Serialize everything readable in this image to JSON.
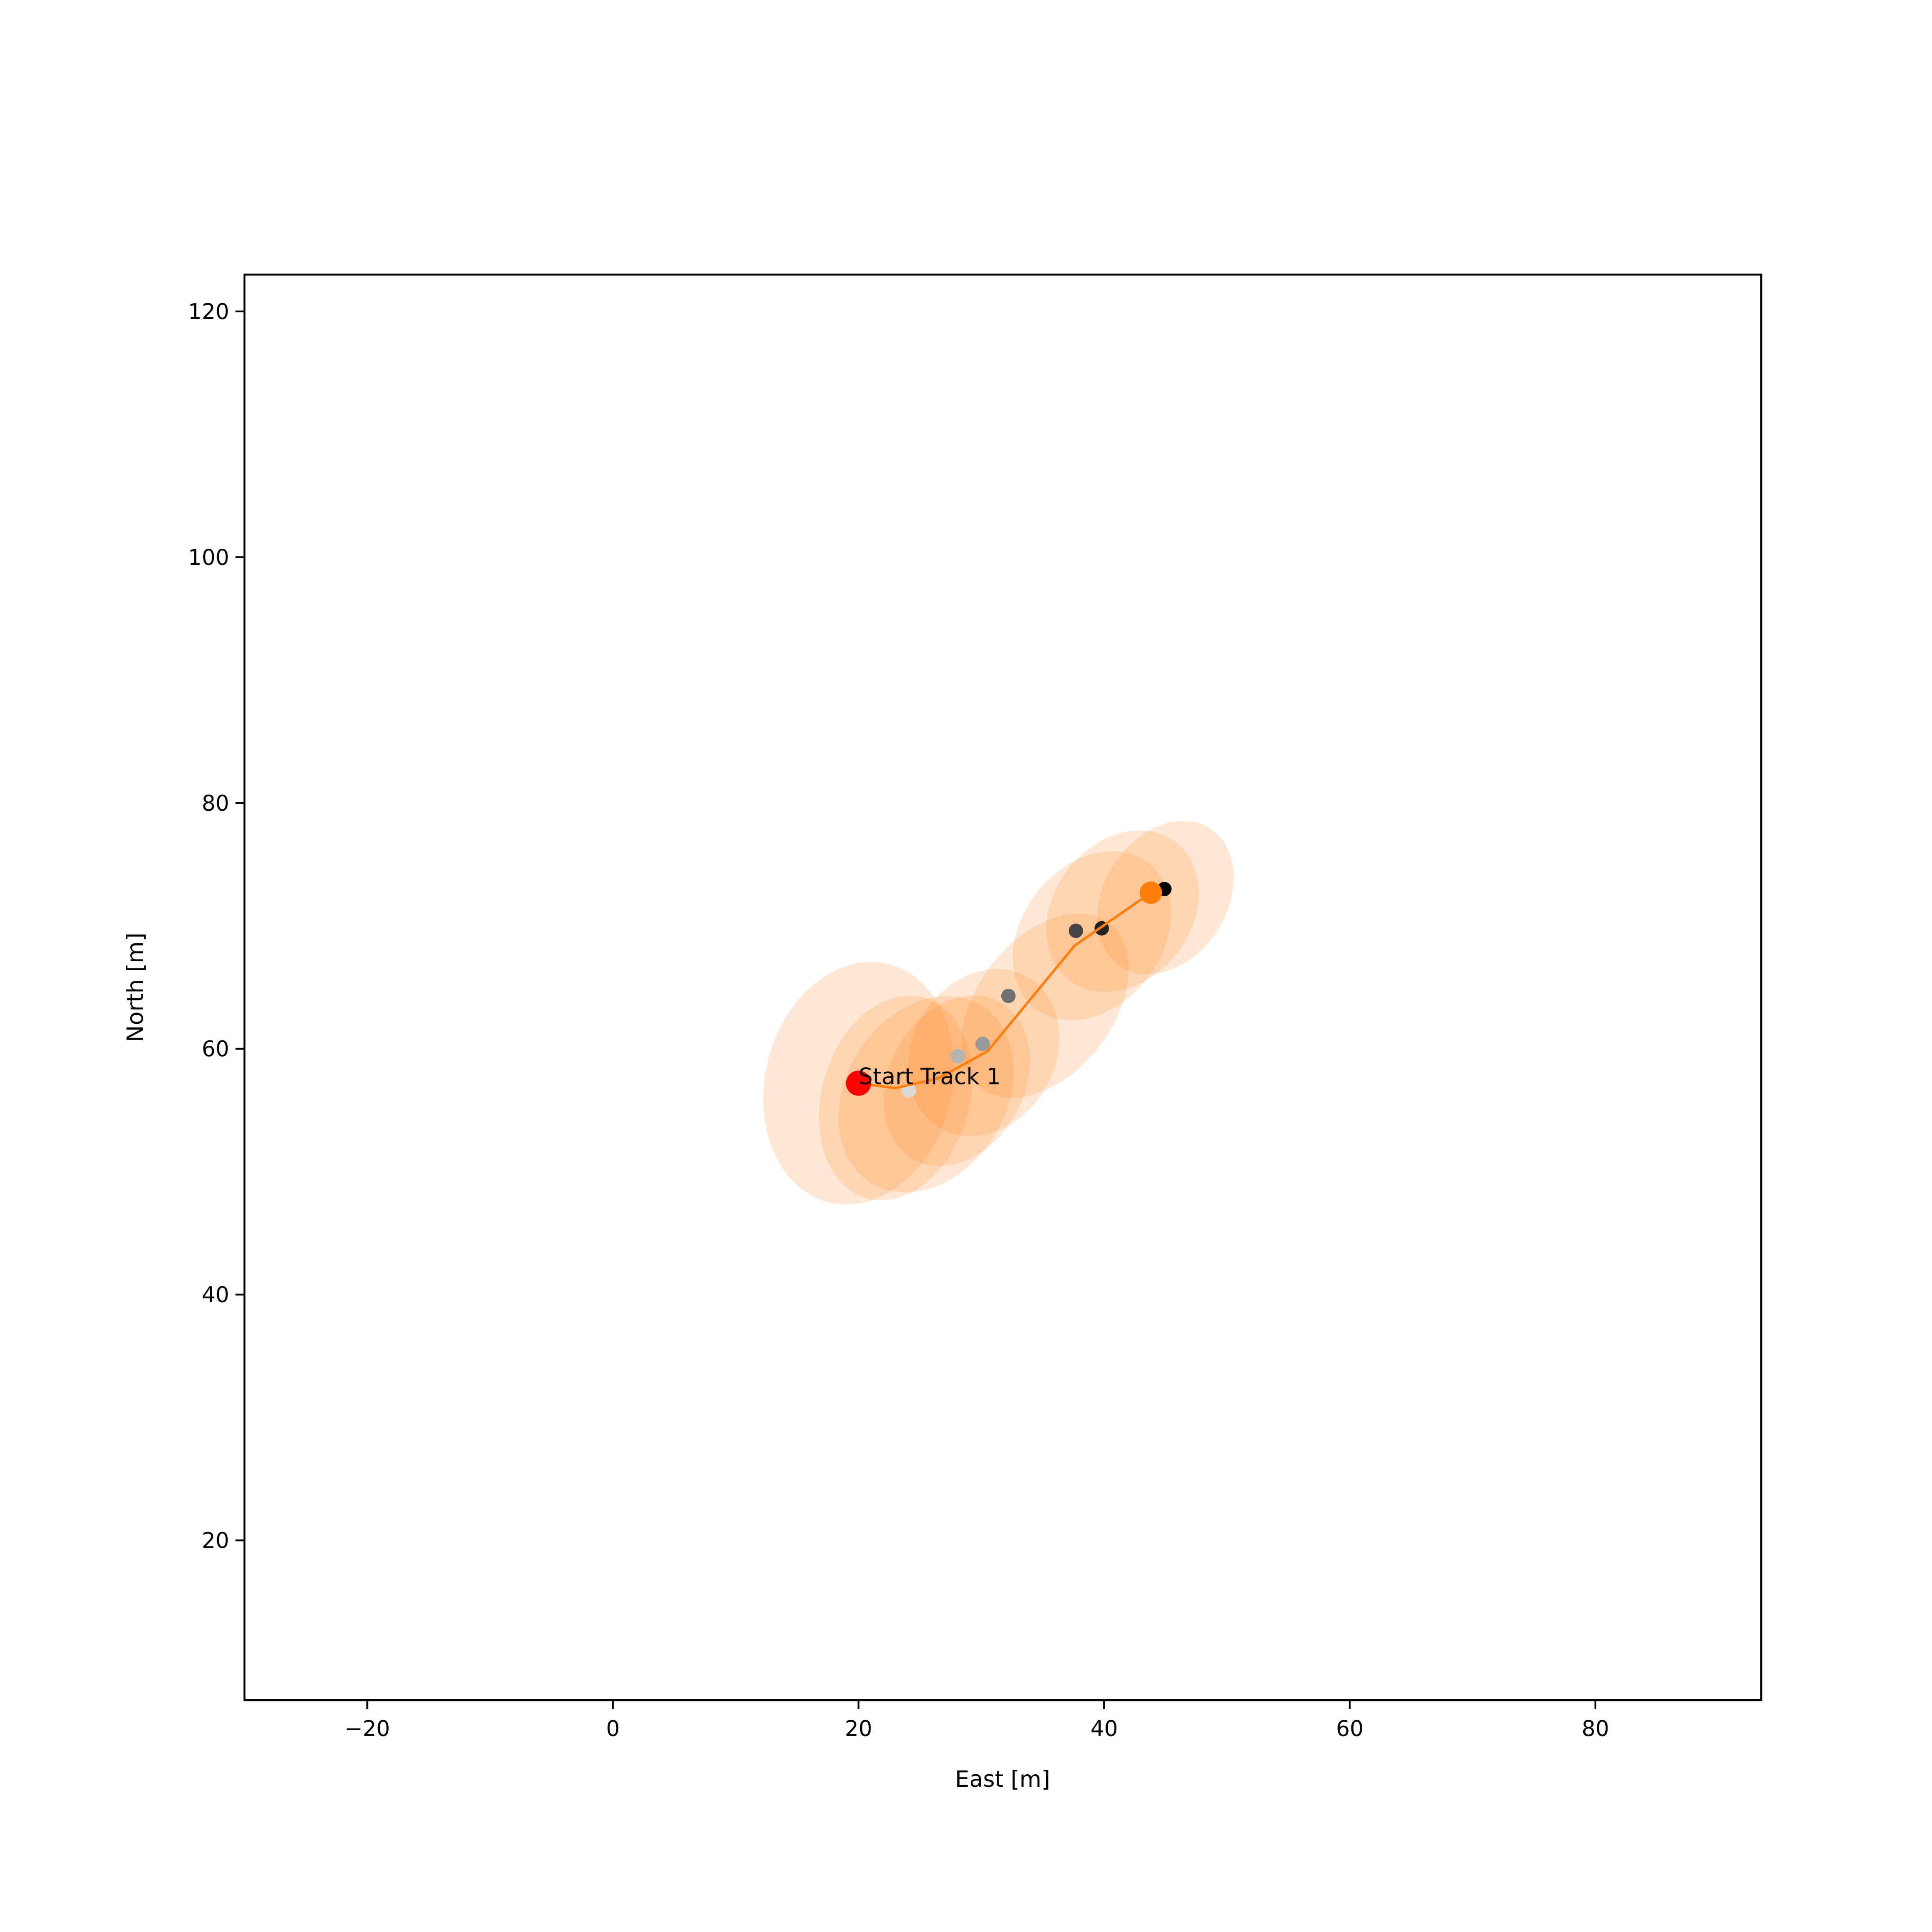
{
  "chart_data": {
    "type": "scatter",
    "title": "",
    "xlabel": "East [m]",
    "ylabel": "North [m]",
    "xlim": [
      -30,
      93.5
    ],
    "ylim": [
      7,
      123
    ],
    "xticks": [
      -20,
      0,
      20,
      40,
      60,
      80
    ],
    "yticks": [
      20,
      40,
      60,
      80,
      100,
      120
    ],
    "grid": false,
    "colors": {
      "track": "#ff7f0e",
      "ellipse": "#ff7f0e",
      "start": "#ff0000",
      "frame": "#000000"
    },
    "annotations": [
      {
        "text": "Start Track 1",
        "x": 20.0,
        "y": 57.2
      }
    ],
    "series": [
      {
        "kind": "measurements",
        "points": [
          {
            "x": 24.1,
            "y": 56.6,
            "shade": "#d9d9d9"
          },
          {
            "x": 28.1,
            "y": 59.4,
            "shade": "#b3b3b3"
          },
          {
            "x": 30.1,
            "y": 60.4,
            "shade": "#999999"
          },
          {
            "x": 32.2,
            "y": 64.3,
            "shade": "#707070"
          },
          {
            "x": 37.7,
            "y": 69.6,
            "shade": "#444444"
          },
          {
            "x": 39.8,
            "y": 69.8,
            "shade": "#222222"
          },
          {
            "x": 44.9,
            "y": 73.0,
            "shade": "#000000"
          }
        ]
      },
      {
        "kind": "track",
        "points": [
          {
            "x": 20.0,
            "y": 57.2
          },
          {
            "x": 23.0,
            "y": 56.8
          },
          {
            "x": 26.5,
            "y": 57.6
          },
          {
            "x": 30.5,
            "y": 59.8
          },
          {
            "x": 37.6,
            "y": 68.4
          },
          {
            "x": 43.8,
            "y": 72.7
          }
        ]
      },
      {
        "kind": "covariance",
        "ellipses": [
          {
            "cx": 20.0,
            "cy": 57.2,
            "rx": 10.0,
            "ry": 7.6,
            "angle": 76
          },
          {
            "cx": 23.0,
            "cy": 56.0,
            "rx": 8.5,
            "ry": 6.0,
            "angle": 74
          },
          {
            "cx": 25.5,
            "cy": 56.3,
            "rx": 8.5,
            "ry": 6.5,
            "angle": 58
          },
          {
            "cx": 28.0,
            "cy": 57.4,
            "rx": 7.3,
            "ry": 5.5,
            "angle": 62
          },
          {
            "cx": 30.2,
            "cy": 59.7,
            "rx": 7.1,
            "ry": 5.8,
            "angle": 60
          },
          {
            "cx": 35.2,
            "cy": 63.5,
            "rx": 8.5,
            "ry": 5.5,
            "angle": 52
          },
          {
            "cx": 39.0,
            "cy": 69.2,
            "rx": 7.5,
            "ry": 5.7,
            "angle": 52
          },
          {
            "cx": 41.5,
            "cy": 71.2,
            "rx": 7.1,
            "ry": 5.6,
            "angle": 52
          },
          {
            "cx": 45.0,
            "cy": 72.3,
            "rx": 6.7,
            "ry": 5.0,
            "angle": 57
          }
        ]
      }
    ],
    "markers": {
      "start": {
        "x": 20.0,
        "y": 57.2
      },
      "end": {
        "x": 43.8,
        "y": 72.7
      }
    }
  }
}
